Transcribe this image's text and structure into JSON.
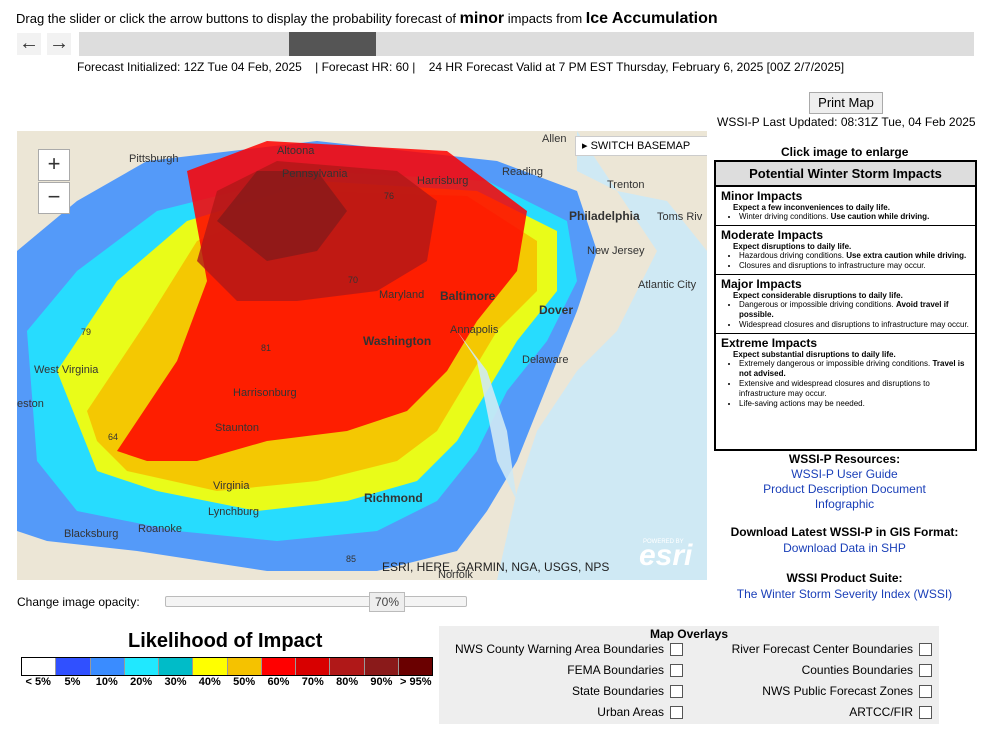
{
  "instructions": {
    "prefix": "Drag the slider or click the arrow buttons to display the probability forecast of",
    "impact": "minor",
    "middle": "impacts from",
    "element": "Ice Accumulation"
  },
  "nav": {
    "prev": "←",
    "next": "→"
  },
  "slider": {
    "position": 0.26
  },
  "forecast": {
    "initialized": "Forecast Initialized: 12Z Tue 04 Feb, 2025",
    "hr": "| Forecast HR: 60 |",
    "valid": "24 HR Forecast Valid at 7 PM EST Thursday, February 6, 2025 [00Z 2/7/2025]"
  },
  "print_button": "Print Map",
  "last_updated": "WSSI-P Last Updated: 08:31Z Tue, 04 Feb 2025",
  "click_enlarge": "Click image to enlarge",
  "map": {
    "zoom_in": "+",
    "zoom_out": "−",
    "switch_basemap": "SWITCH BASEMAP",
    "attribution": "ESRI, HERE, GARMIN, NGA, USGS, NPS",
    "esri_powered": "POWERED BY",
    "esri_logo": "esri",
    "places": {
      "pittsburgh": "Pittsburgh",
      "altoona": "Altoona",
      "pennsylvania": "Pennsylvania",
      "harrisburg": "Harrisburg",
      "reading": "Reading",
      "allentown": "Allen",
      "trenton": "Trenton",
      "philadelphia": "Philadelphia",
      "toms_river": "Toms Riv",
      "new_jersey": "New Jersey",
      "atlantic_city": "Atlantic City",
      "baltimore": "Baltimore",
      "maryland": "Maryland",
      "annapolis": "Annapolis",
      "dover": "Dover",
      "delaware": "Delaware",
      "washington": "Washington",
      "west_virginia": "West Virginia",
      "harrisonburg": "Harrisonburg",
      "staunton": "Staunton",
      "virginia": "Virginia",
      "lynchburg": "Lynchburg",
      "richmond": "Richmond",
      "roanoke": "Roanoke",
      "blacksburg": "Blacksburg",
      "norfolk": "Norfolk",
      "charleston": "eston",
      "i79": "79",
      "i81": "81",
      "i70": "70",
      "i76": "76",
      "i64": "64",
      "i85": "85"
    }
  },
  "impacts": {
    "title": "Potential Winter Storm Impacts",
    "minor": {
      "title": "Minor Impacts",
      "sub": "Expect a few inconveniences to daily life.",
      "b1a": "Winter driving conditions.",
      "b1b": "Use caution while driving."
    },
    "moderate": {
      "title": "Moderate Impacts",
      "sub": "Expect disruptions to daily life.",
      "b1a": "Hazardous driving conditions.",
      "b1b": "Use extra caution while driving.",
      "b2": "Closures and disruptions to infrastructure may occur."
    },
    "major": {
      "title": "Major Impacts",
      "sub": "Expect considerable disruptions to daily life.",
      "b1a": "Dangerous or impossible driving conditions.",
      "b1b": "Avoid travel if possible.",
      "b2": "Widespread closures and disruptions to infrastructure may occur."
    },
    "extreme": {
      "title": "Extreme Impacts",
      "sub": "Expect substantial disruptions to daily life.",
      "b1a": "Extremely dangerous or impossible driving conditions.",
      "b1b": "Travel is not advised.",
      "b2": "Extensive and widespread closures and disruptions to infrastructure may occur.",
      "b3": "Life-saving actions may be needed."
    }
  },
  "resources": {
    "title": "WSSI-P Resources:",
    "user_guide": "WSSI-P User Guide",
    "pdd": "Product Description Document",
    "infographic": "Infographic",
    "gis_title": "Download Latest WSSI-P in GIS Format:",
    "shp": "Download Data in SHP",
    "suite_title": "WSSI Product Suite:",
    "wssi": "The Winter Storm Severity Index (WSSI)"
  },
  "opacity": {
    "label": "Change image opacity:",
    "value": "70%"
  },
  "legend": {
    "title": "Likelihood of Impact",
    "labels": [
      "< 5%",
      "5%",
      "10%",
      "20%",
      "30%",
      "40%",
      "50%",
      "60%",
      "70%",
      "80%",
      "90%",
      "> 95%"
    ],
    "colors": [
      "#ffffff",
      "#3050ff",
      "#3a8cff",
      "#20e8ff",
      "#00bcc8",
      "#ffff00",
      "#f5c200",
      "#ff0000",
      "#d80000",
      "#b01818",
      "#8a1a1a",
      "#6a0000"
    ]
  },
  "overlays": {
    "title": "Map Overlays",
    "cwa": "NWS County Warning Area Boundaries",
    "fema": "FEMA Boundaries",
    "state": "State Boundaries",
    "urban": "Urban Areas",
    "rfc": "River Forecast Center Boundaries",
    "counties": "Counties Boundaries",
    "zones": "NWS Public Forecast Zones",
    "artcc": "ARTCC/FIR"
  }
}
